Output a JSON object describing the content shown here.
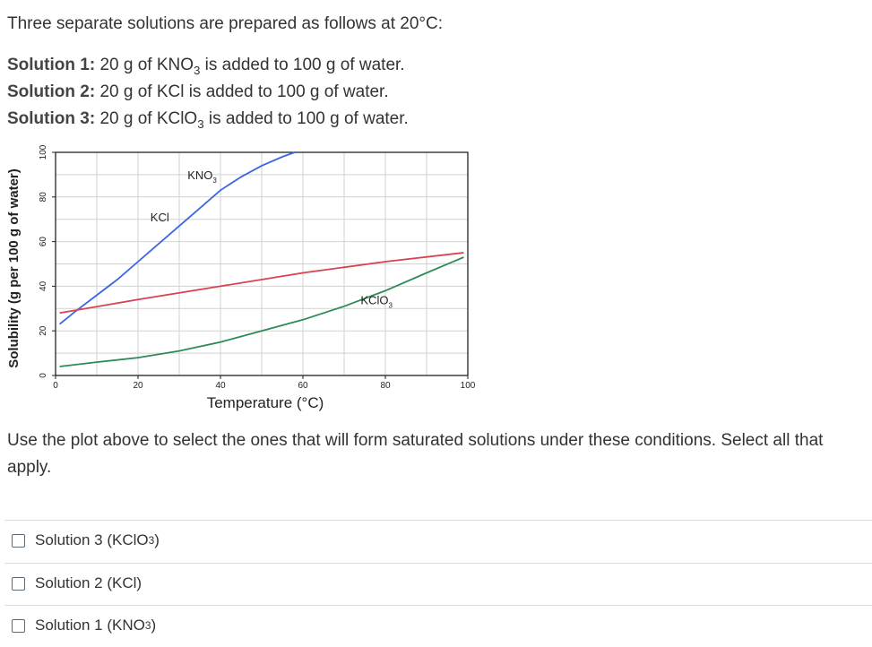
{
  "intro": "Three separate solutions are prepared as follows at 20°C:",
  "solutions": [
    {
      "label": "Solution 1:",
      "pre": "20 g of KNO",
      "sub": "3",
      "post": " is added to 100 g of water."
    },
    {
      "label": "Solution 2:",
      "pre": "20 g of KCl is added to 100 g of water.",
      "sub": "",
      "post": ""
    },
    {
      "label": "Solution 3:",
      "pre": "20 g of KClO",
      "sub": "3",
      "post": " is added to 100 g of water."
    }
  ],
  "question": "Use the plot above to select the ones that will form saturated solutions under these conditions. Select all that apply.",
  "options": [
    {
      "pre": "Solution 3 (KClO",
      "sub": "3",
      "post": ")"
    },
    {
      "pre": "Solution 2 (KCl)",
      "sub": "",
      "post": ""
    },
    {
      "pre": "Solution 1 (KNO",
      "sub": "3",
      "post": ")"
    }
  ],
  "chart_data": {
    "type": "line",
    "xlabel": "Temperature (°C)",
    "ylabel": "Solubility (g per 100 g of water)",
    "xlim": [
      0,
      100
    ],
    "ylim": [
      0,
      100
    ],
    "xticks": [
      0,
      20,
      40,
      60,
      80,
      100
    ],
    "yticks": [
      0,
      20,
      40,
      60,
      80,
      100
    ],
    "grid": true,
    "series": [
      {
        "name": "KNO₃",
        "label_main": "KNO",
        "label_sub": "3",
        "color": "#3a66e6",
        "x": [
          1,
          5,
          10,
          15,
          20,
          25,
          30,
          35,
          40,
          45,
          50,
          55,
          58
        ],
        "y": [
          23,
          29,
          36,
          43,
          51,
          59,
          67,
          75,
          83,
          89,
          94,
          98,
          100
        ]
      },
      {
        "name": "KCl",
        "label_main": "KCl",
        "label_sub": "",
        "color": "#d94150",
        "x": [
          1,
          20,
          40,
          60,
          80,
          99
        ],
        "y": [
          28,
          34,
          40,
          46,
          51,
          55
        ]
      },
      {
        "name": "KClO₃",
        "label_main": "KClO",
        "label_sub": "3",
        "color": "#2e8b57",
        "x": [
          1,
          10,
          20,
          30,
          40,
          50,
          60,
          70,
          80,
          90,
          99
        ],
        "y": [
          4,
          6,
          8,
          11,
          15,
          20,
          25,
          31,
          38,
          46,
          53
        ]
      }
    ]
  }
}
